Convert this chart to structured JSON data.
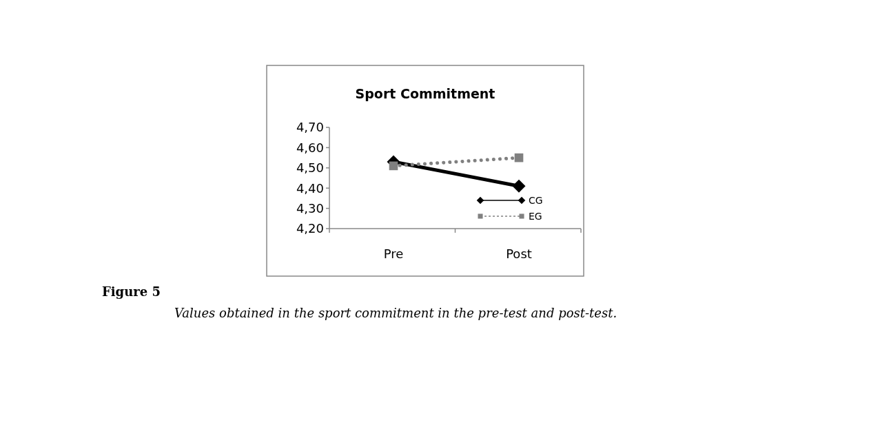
{
  "chart_data": {
    "type": "line",
    "title": "Sport Commitment",
    "categories": [
      "Pre",
      "Post"
    ],
    "series": [
      {
        "name": "CG",
        "color": "#000000",
        "values": [
          4.53,
          4.41
        ],
        "marker": "diamond",
        "line_style": "solid"
      },
      {
        "name": "EG",
        "color": "#808080",
        "values": [
          4.51,
          4.55
        ],
        "marker": "square",
        "line_style": "dotted"
      }
    ],
    "ylim": [
      4.2,
      4.7
    ],
    "yticks": [
      {
        "value": 4.2,
        "label": "4,20"
      },
      {
        "value": 4.3,
        "label": "4,30"
      },
      {
        "value": 4.4,
        "label": "4,40"
      },
      {
        "value": 4.5,
        "label": "4,50"
      },
      {
        "value": 4.6,
        "label": "4,60"
      },
      {
        "value": 4.7,
        "label": "4,70"
      }
    ],
    "grid": false,
    "legend": "bottom right",
    "annotations": [
      "Figure 5",
      "Values obtained in the sport commitment in the pre-test and post-test."
    ]
  }
}
